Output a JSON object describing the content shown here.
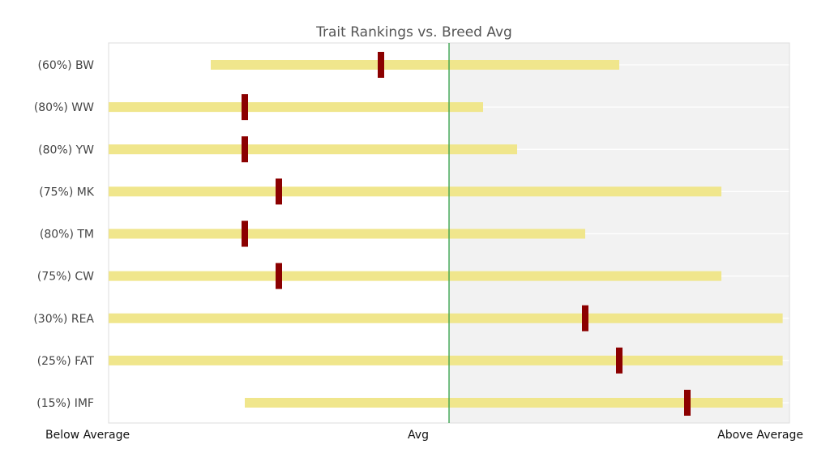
{
  "chart_data": {
    "type": "range-bar",
    "title": "Trait Rankings vs. Breed Avg",
    "x_ticks": [
      {
        "value": -1,
        "label": "Below Average"
      },
      {
        "value": 0,
        "label": "Avg"
      },
      {
        "value": 1,
        "label": "Above Average"
      }
    ],
    "xlim": [
      -1,
      1
    ],
    "grid": true,
    "traits": [
      {
        "label": "(60%) BW",
        "range": [
          -0.7,
          0.5
        ],
        "marker": -0.2
      },
      {
        "label": "(80%) WW",
        "range": [
          -1.0,
          0.1
        ],
        "marker": -0.6
      },
      {
        "label": "(80%) YW",
        "range": [
          -1.0,
          0.2
        ],
        "marker": -0.6
      },
      {
        "label": "(75%) MK",
        "range": [
          -1.0,
          0.8
        ],
        "marker": -0.5
      },
      {
        "label": "(80%) TM",
        "range": [
          -1.0,
          0.4
        ],
        "marker": -0.6
      },
      {
        "label": "(75%) CW",
        "range": [
          -1.0,
          0.8
        ],
        "marker": -0.5
      },
      {
        "label": "(30%) REA",
        "range": [
          -1.0,
          0.98
        ],
        "marker": 0.4
      },
      {
        "label": "(25%) FAT",
        "range": [
          -1.0,
          0.98
        ],
        "marker": 0.5
      },
      {
        "label": "(15%) IMF",
        "range": [
          -0.6,
          0.98
        ],
        "marker": 0.7
      }
    ],
    "colors": {
      "range_bar": "#f0e68c",
      "marker": "#8b0000",
      "avg_line": "#2e9e44",
      "above_avg_shade": "#f2f2f2",
      "grid": "#ffffff",
      "frame": "#dddddd"
    }
  }
}
